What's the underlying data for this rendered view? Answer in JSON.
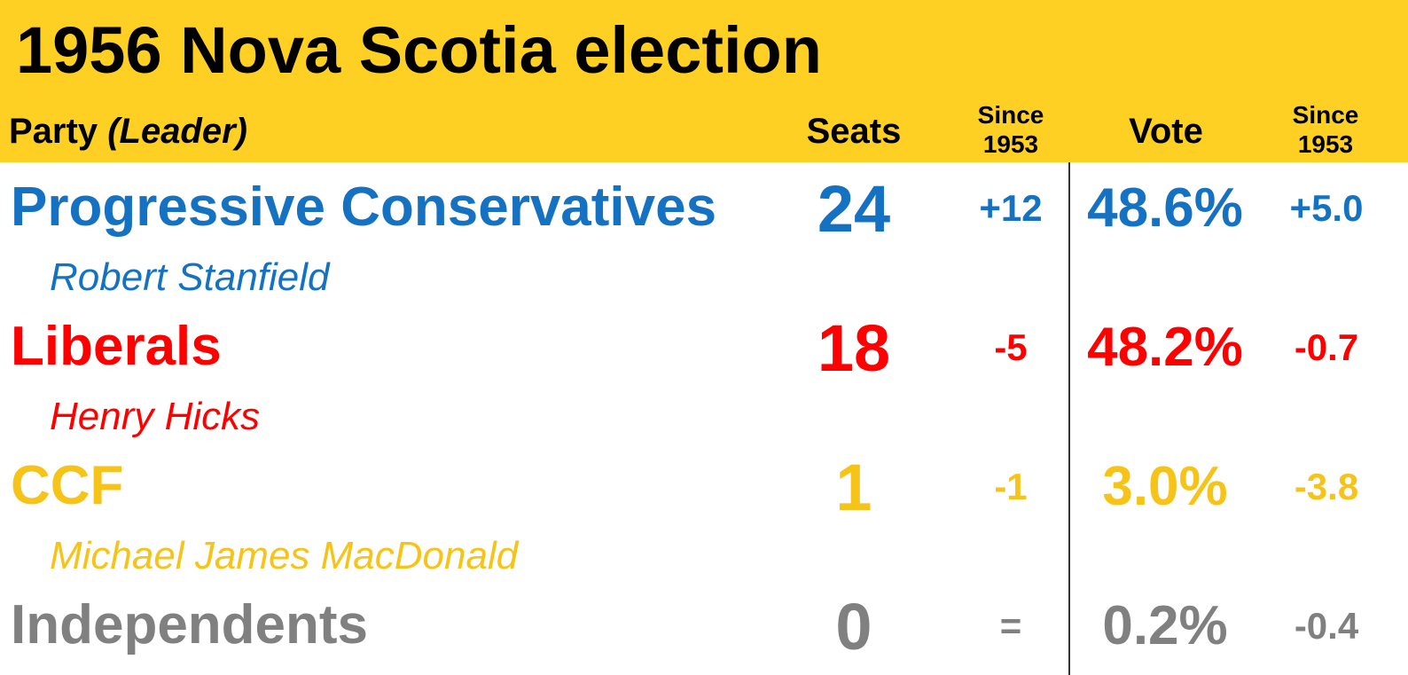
{
  "title": "1956 Nova Scotia election",
  "header": {
    "party": "Party",
    "leader": "(Leader)",
    "seats": "Seats",
    "seats_change": "Since 1953",
    "vote": "Vote",
    "vote_change": "Since 1953"
  },
  "rows": [
    {
      "name": "Progressive Conservatives",
      "leader": "Robert Stanfield",
      "seats": "24",
      "seats_change": "+12",
      "vote": "48.6%",
      "vote_change": "+5.0",
      "color": "#1572c2"
    },
    {
      "name": "Liberals",
      "leader": "Henry Hicks",
      "seats": "18",
      "seats_change": "-5",
      "vote": "48.2%",
      "vote_change": "-0.7",
      "color": "#ff0000"
    },
    {
      "name": "CCF",
      "leader": "Michael James MacDonald",
      "seats": "1",
      "seats_change": "-1",
      "vote": "3.0%",
      "vote_change": "-3.8",
      "color": "#f6c419"
    },
    {
      "name": "Independents",
      "seats": "0",
      "seats_change": "=",
      "vote": "0.2%",
      "vote_change": "-0.4",
      "color": "#808080"
    }
  ]
}
